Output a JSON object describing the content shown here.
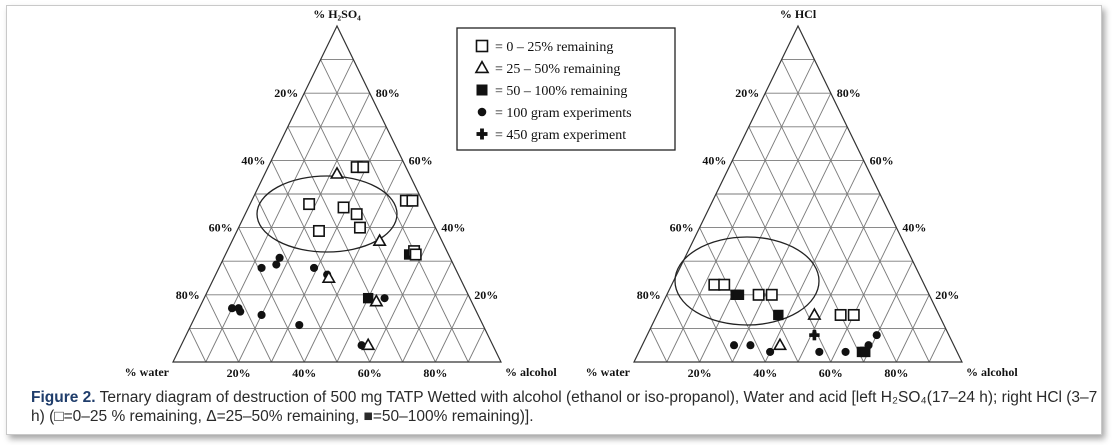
{
  "colors": {
    "ink": "#111111",
    "grid": "#7a7a7a",
    "caption_lead": "#1f3d6b"
  },
  "legend": {
    "items": [
      {
        "symbol": "square-open",
        "label": "= 0 – 25% remaining"
      },
      {
        "symbol": "triangle-open",
        "label": "= 25 – 50% remaining"
      },
      {
        "symbol": "square-filled",
        "label": "= 50 – 100% remaining"
      },
      {
        "symbol": "x-bold",
        "label": "= 100 gram experiments"
      },
      {
        "symbol": "plus-bold",
        "label": "= 450 gram experiment"
      }
    ]
  },
  "caption": {
    "lead": "Figure 2.",
    "text": " Ternary diagram of destruction of 500 mg TATP Wetted with alcohol (ethanol or iso-propanol), Water and acid [left H₂SO₄(17–24 h); right HCl (3–7 h) (□=0–25 % remaining, Δ=25–50% remaining, ■=50–100% remaining)]."
  },
  "chart_data": [
    {
      "type": "ternary-scatter",
      "acid_label": "% H₂SO₄",
      "water_label": "% water",
      "alcohol_label": "% alcohol",
      "left_ticks": [
        "20%",
        "40%",
        "60%",
        "80%"
      ],
      "right_ticks": [
        "80%",
        "60%",
        "40%",
        "20%"
      ],
      "bottom_ticks": [
        "20%",
        "40%",
        "60%",
        "80%"
      ],
      "points": [
        {
          "acid": 56,
          "water": 22,
          "symbol": "triangle-open"
        },
        {
          "acid": 58,
          "water": 15,
          "symbol": "square-open"
        },
        {
          "acid": 58,
          "water": 13,
          "symbol": "square-open"
        },
        {
          "acid": 47,
          "water": 35,
          "symbol": "square-open"
        },
        {
          "acid": 46,
          "water": 25,
          "symbol": "square-open"
        },
        {
          "acid": 44,
          "water": 22,
          "symbol": "square-open"
        },
        {
          "acid": 48,
          "water": 5,
          "symbol": "square-open"
        },
        {
          "acid": 48,
          "water": 3,
          "symbol": "square-open"
        },
        {
          "acid": 40,
          "water": 23,
          "symbol": "square-open"
        },
        {
          "acid": 39,
          "water": 36,
          "symbol": "square-open"
        },
        {
          "acid": 36,
          "water": 19,
          "symbol": "triangle-open"
        },
        {
          "acid": 32,
          "water": 12,
          "symbol": "square-filled"
        },
        {
          "acid": 33,
          "water": 10,
          "symbol": "square-open"
        },
        {
          "acid": 32,
          "water": 10,
          "symbol": "square-open"
        },
        {
          "acid": 31,
          "water": 52,
          "symbol": "x-bold"
        },
        {
          "acid": 29,
          "water": 54,
          "symbol": "x-bold"
        },
        {
          "acid": 28,
          "water": 43,
          "symbol": "x-bold"
        },
        {
          "acid": 26,
          "water": 40,
          "symbol": "x-bold"
        },
        {
          "acid": 25,
          "water": 40,
          "symbol": "triangle-open"
        },
        {
          "acid": 28,
          "water": 59,
          "symbol": "x-bold"
        },
        {
          "acid": 16,
          "water": 74,
          "symbol": "x-bold"
        },
        {
          "acid": 16,
          "water": 72,
          "symbol": "x-bold"
        },
        {
          "acid": 15,
          "water": 72,
          "symbol": "x-bold"
        },
        {
          "acid": 14,
          "water": 66,
          "symbol": "x-bold"
        },
        {
          "acid": 11,
          "water": 56,
          "symbol": "x-bold"
        },
        {
          "acid": 18,
          "water": 29,
          "symbol": "triangle-open"
        },
        {
          "acid": 19,
          "water": 31,
          "symbol": "square-filled"
        },
        {
          "acid": 19,
          "water": 26,
          "symbol": "x-bold"
        },
        {
          "acid": 5,
          "water": 38,
          "symbol": "triangle-open"
        },
        {
          "acid": 5,
          "water": 40,
          "symbol": "x-bold"
        }
      ]
    },
    {
      "type": "ternary-scatter",
      "acid_label": "% HCl",
      "water_label": "% water",
      "alcohol_label": "% alcohol",
      "left_ticks": [
        "20%",
        "40%",
        "60%",
        "80%"
      ],
      "right_ticks": [
        "80%",
        "60%",
        "40%",
        "20%"
      ],
      "bottom_ticks": [
        "20%",
        "40%",
        "60%",
        "80%"
      ],
      "points": [
        {
          "acid": 23,
          "water": 64,
          "symbol": "square-open"
        },
        {
          "acid": 23,
          "water": 61,
          "symbol": "square-open"
        },
        {
          "acid": 20,
          "water": 59,
          "symbol": "square-filled"
        },
        {
          "acid": 20,
          "water": 58,
          "symbol": "square-filled"
        },
        {
          "acid": 20,
          "water": 52,
          "symbol": "square-open"
        },
        {
          "acid": 20,
          "water": 48,
          "symbol": "square-open"
        },
        {
          "acid": 14,
          "water": 49,
          "symbol": "square-filled"
        },
        {
          "acid": 14,
          "water": 38,
          "symbol": "triangle-open"
        },
        {
          "acid": 14,
          "water": 30,
          "symbol": "square-open"
        },
        {
          "acid": 14,
          "water": 26,
          "symbol": "square-open"
        },
        {
          "acid": 8,
          "water": 41,
          "symbol": "plus-bold"
        },
        {
          "acid": 8,
          "water": 22,
          "symbol": "x-bold"
        },
        {
          "acid": 5,
          "water": 67,
          "symbol": "x-bold"
        },
        {
          "acid": 5,
          "water": 62,
          "symbol": "x-bold"
        },
        {
          "acid": 5,
          "water": 53,
          "symbol": "triangle-open"
        },
        {
          "acid": 3,
          "water": 57,
          "symbol": "x-bold"
        },
        {
          "acid": 3,
          "water": 42,
          "symbol": "x-bold"
        },
        {
          "acid": 3,
          "water": 34,
          "symbol": "x-bold"
        },
        {
          "acid": 3,
          "water": 29,
          "symbol": "square-filled"
        },
        {
          "acid": 3,
          "water": 28,
          "symbol": "square-filled"
        },
        {
          "acid": 5,
          "water": 26,
          "symbol": "x-bold"
        }
      ]
    }
  ]
}
